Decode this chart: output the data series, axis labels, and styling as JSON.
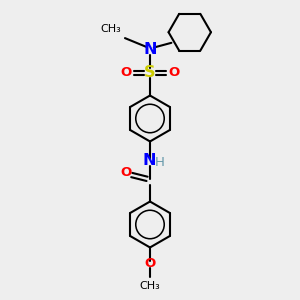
{
  "bg_color": "#eeeeee",
  "atom_colors": {
    "C": "#000000",
    "N": "#0000ff",
    "O": "#ff0000",
    "S": "#cccc00",
    "H": "#6699aa"
  },
  "bond_color": "#000000",
  "bond_width": 1.5,
  "font_size": 9.5
}
